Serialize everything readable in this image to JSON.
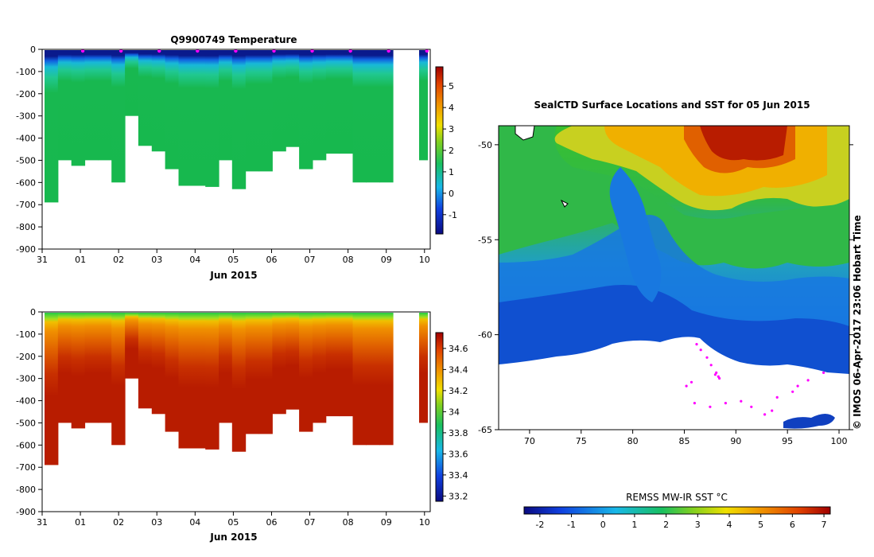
{
  "chart_data": [
    {
      "type": "heatmap",
      "title": "Q9900749  Temperature",
      "xlabel": "Jun 2015",
      "x_tick_labels": [
        "31",
        "01",
        "02",
        "03",
        "04",
        "05",
        "06",
        "07",
        "08",
        "09",
        "10"
      ],
      "y_tick_labels": [
        "0",
        "-100",
        "-200",
        "-300",
        "-400",
        "-500",
        "-600",
        "-700",
        "-800",
        "-900"
      ],
      "ylim": [
        -900,
        0
      ],
      "colorbar_ticks": [
        "5",
        "4",
        "3",
        "2",
        "1",
        "0",
        "-1"
      ],
      "colorbar_range": [
        -1.9,
        5.9
      ],
      "profile_depths": [
        -690,
        -500,
        -525,
        -500,
        -500,
        -600,
        -300,
        -435,
        -460,
        -540,
        -615,
        -615,
        -620,
        -500,
        -630,
        -550,
        -550,
        -460,
        -440,
        -540,
        -500,
        -470,
        -470,
        -600,
        -600,
        -600
      ],
      "profile_markers": [
        "31",
        "01",
        "02",
        "03",
        "04",
        "05",
        "06",
        "07",
        "08",
        "09",
        "10"
      ],
      "colors": {
        "deep": "#17b84e",
        "surface": "#0a1a8c",
        "thermocline": "#1ab8d8",
        "marker": "#ff00ff"
      }
    },
    {
      "type": "heatmap",
      "title": "",
      "xlabel": "Jun 2015",
      "x_tick_labels": [
        "31",
        "01",
        "02",
        "03",
        "04",
        "05",
        "06",
        "07",
        "08",
        "09",
        "10"
      ],
      "y_tick_labels": [
        "0",
        "-100",
        "-200",
        "-300",
        "-400",
        "-500",
        "-600",
        "-700",
        "-800",
        "-900"
      ],
      "ylim": [
        -900,
        0
      ],
      "colorbar_ticks": [
        "34.6",
        "34.4",
        "34.2",
        "34",
        "33.8",
        "33.6",
        "33.4",
        "33.2"
      ],
      "colorbar_range": [
        33.15,
        34.75
      ],
      "colors": {
        "surface": "#22cc44",
        "deep": "#b81c00"
      }
    },
    {
      "type": "heatmap",
      "title": "SealCTD Surface Locations and SST for 05 Jun 2015",
      "x_tick_labels": [
        "70",
        "75",
        "80",
        "85",
        "90",
        "95",
        "100"
      ],
      "y_tick_labels": [
        "-50",
        "-55",
        "-60",
        "-65"
      ],
      "xlim": [
        67,
        101
      ],
      "ylim": [
        -65,
        -49
      ],
      "colorbar_label": "REMSS MW-IR SST °C",
      "colorbar_ticks": [
        "-2",
        "-1",
        "0",
        "1",
        "2",
        "3",
        "4",
        "5",
        "6",
        "7"
      ],
      "colorbar_range": [
        -2.5,
        7.2
      ],
      "credit": "© IMOS 06-Apr-2017 23:06 Hobart Time",
      "colors": {
        "warm": "#c01800",
        "mid": "#2bb83c",
        "cold": "#1260e0",
        "ice": "#ffffff",
        "track": "#ff00ff"
      }
    }
  ]
}
